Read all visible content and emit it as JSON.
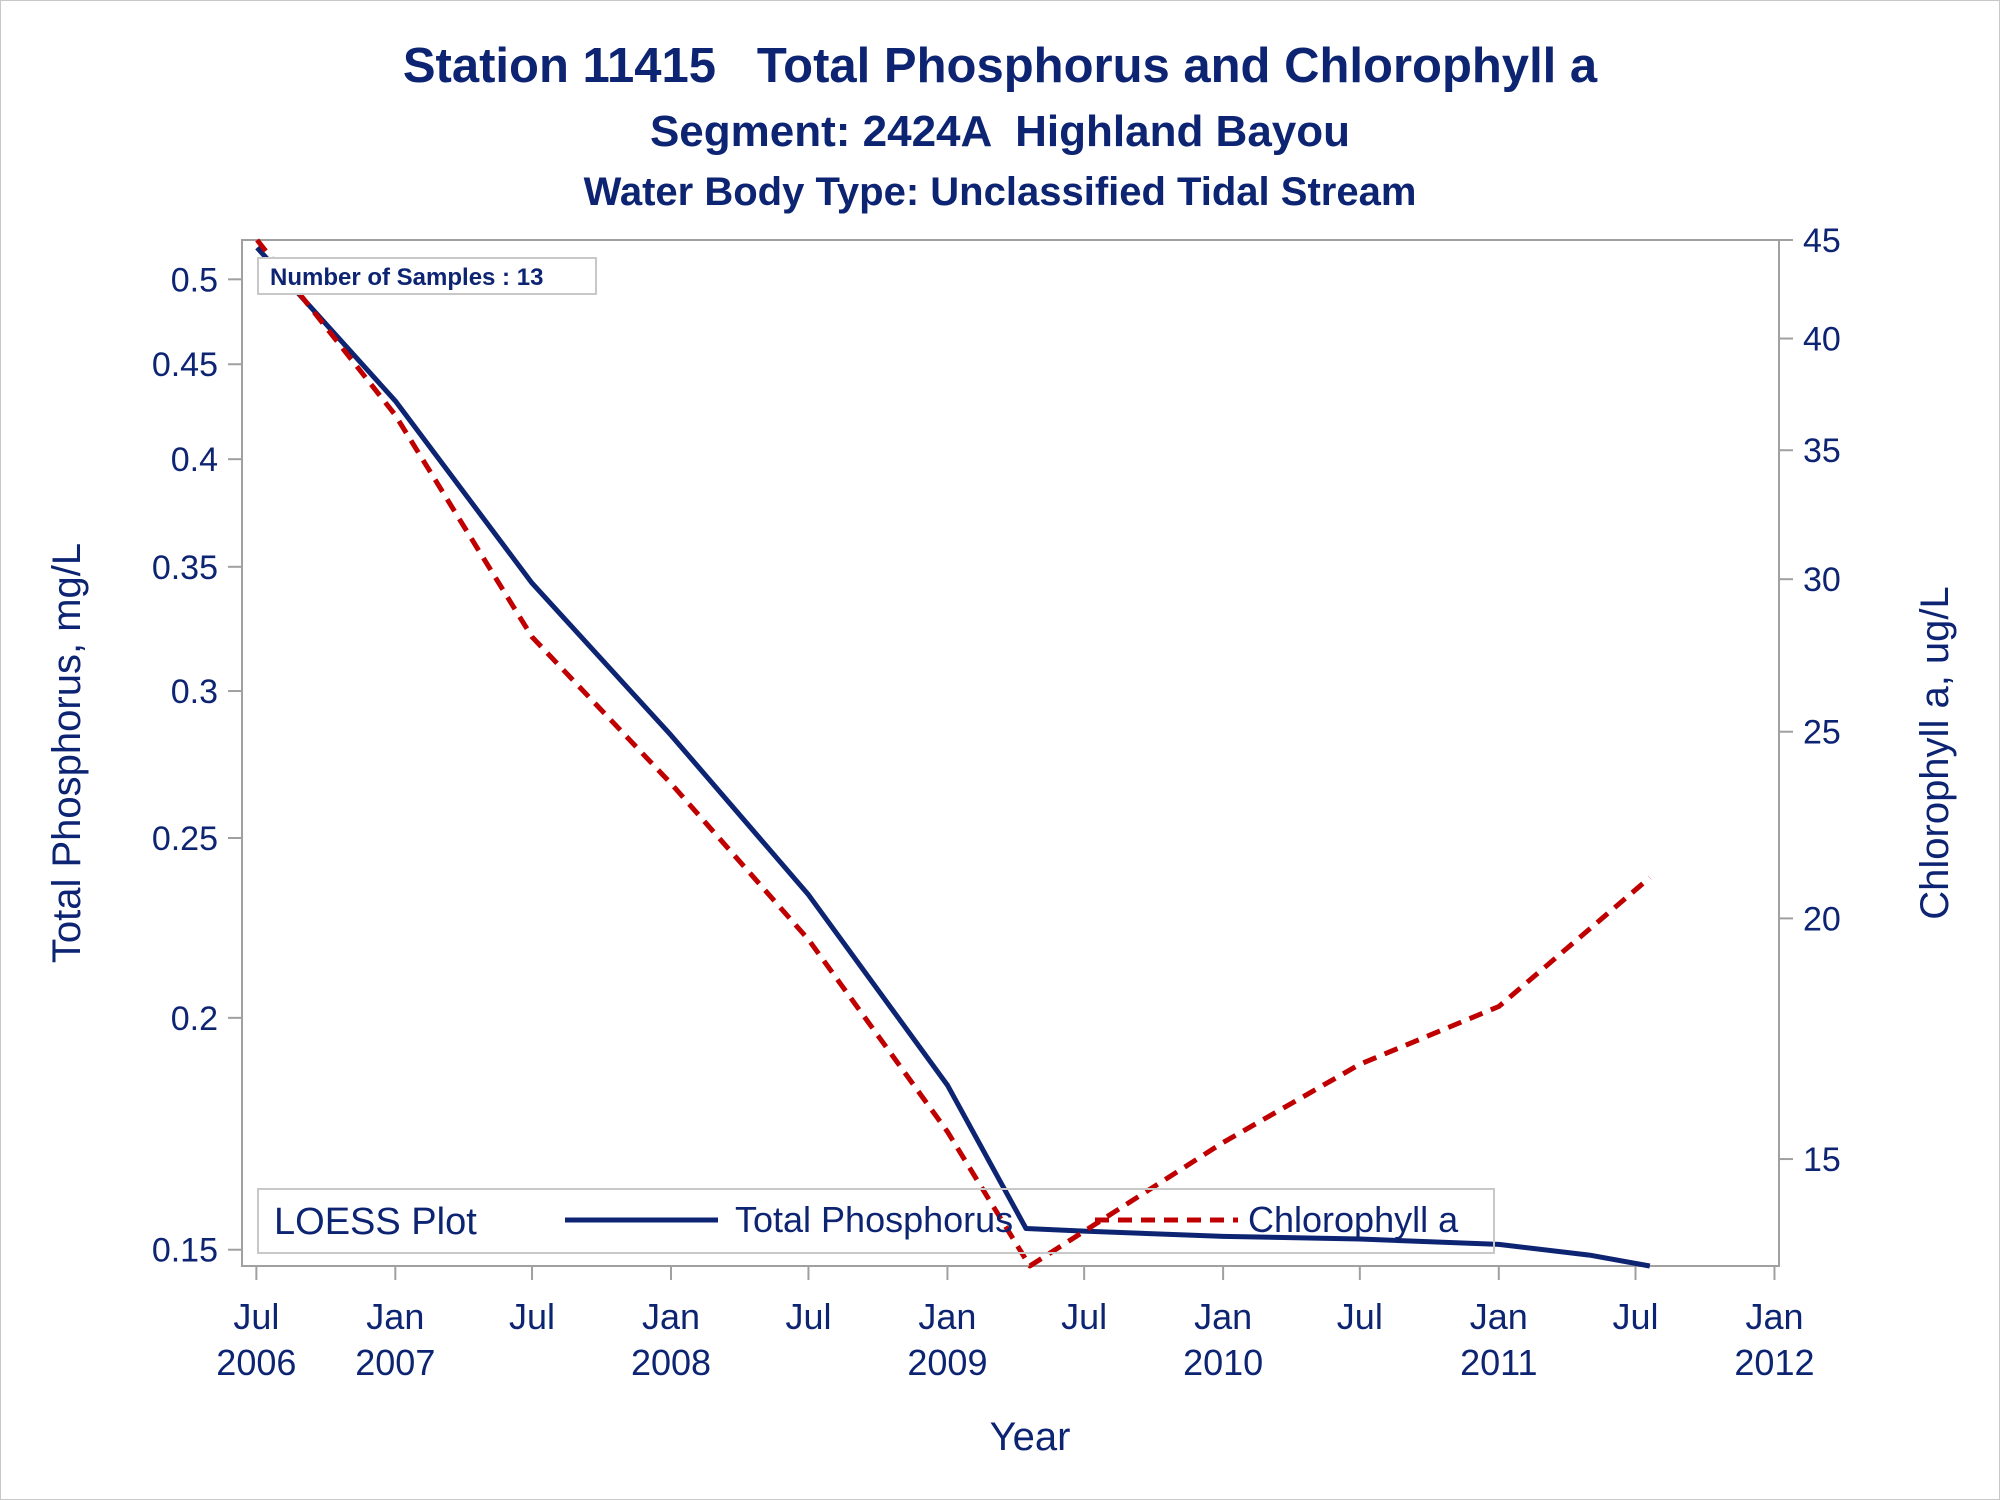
{
  "chart_data": {
    "type": "line",
    "title": "Station 11415   Total Phosphorus and Chlorophyll a",
    "subtitle": "Segment: 2424A  Highland Bayou",
    "subtitle2": "Water Body Type: Unclassified Tidal Stream",
    "xlabel": "Year",
    "ylabel": "Total Phosphorus, mg/L",
    "y2label": "Chlorophyll a, ug/L",
    "annotation": "Number of Samples : 13",
    "legend": {
      "title": "LOESS Plot",
      "placement": "bottom-left inside"
    },
    "x_ticks": [
      {
        "date": "2006-07-01",
        "label": [
          "Jul",
          "2006"
        ]
      },
      {
        "date": "2007-01-01",
        "label": [
          "Jan",
          "2007"
        ]
      },
      {
        "date": "2007-07-01",
        "label": [
          "Jul",
          ""
        ]
      },
      {
        "date": "2008-01-01",
        "label": [
          "Jan",
          "2008"
        ]
      },
      {
        "date": "2008-07-01",
        "label": [
          "Jul",
          ""
        ]
      },
      {
        "date": "2009-01-01",
        "label": [
          "Jan",
          "2009"
        ]
      },
      {
        "date": "2009-07-01",
        "label": [
          "Jul",
          ""
        ]
      },
      {
        "date": "2010-01-01",
        "label": [
          "Jan",
          "2010"
        ]
      },
      {
        "date": "2010-07-01",
        "label": [
          "Jul",
          ""
        ]
      },
      {
        "date": "2011-01-01",
        "label": [
          "Jan",
          "2011"
        ]
      },
      {
        "date": "2011-07-01",
        "label": [
          "Jul",
          ""
        ]
      },
      {
        "date": "2012-01-01",
        "label": [
          "Jan",
          "2012"
        ]
      }
    ],
    "y_ticks": [
      0.15,
      0.2,
      0.25,
      0.3,
      0.35,
      0.4,
      0.45,
      0.5
    ],
    "y_tick_labels": [
      "0.15",
      "0.2",
      "0.25",
      "0.3",
      "0.35",
      "0.4",
      "0.45",
      "0.5"
    ],
    "ylim": [
      0.147,
      0.525
    ],
    "y_scale": "log",
    "y2_ticks": [
      15,
      20,
      25,
      30,
      35,
      40,
      45
    ],
    "y2_tick_labels": [
      "15",
      "20",
      "25",
      "30",
      "35",
      "40",
      "45"
    ],
    "y2lim": [
      13.2,
      45
    ],
    "y2_scale": "log",
    "xlim": [
      "2006-06-12",
      "2012-01-07"
    ],
    "series": [
      {
        "name": "Total Phosphorus",
        "axis": "left",
        "color": "#0d2473",
        "style": "solid",
        "points": [
          [
            "2006-07-02",
            0.52
          ],
          [
            "2007-01-01",
            0.43
          ],
          [
            "2007-07-01",
            0.343
          ],
          [
            "2008-01-01",
            0.284
          ],
          [
            "2008-07-01",
            0.233
          ],
          [
            "2009-01-01",
            0.184
          ],
          [
            "2009-04-15",
            0.154
          ],
          [
            "2009-07-01",
            0.1535
          ],
          [
            "2010-01-01",
            0.1525
          ],
          [
            "2010-07-01",
            0.152
          ],
          [
            "2011-01-01",
            0.151
          ],
          [
            "2011-05-01",
            0.149
          ],
          [
            "2011-07-20",
            0.147
          ]
        ]
      },
      {
        "name": "Chlorophyll a",
        "axis": "right",
        "color": "#c00000",
        "style": "dashed",
        "points": [
          [
            "2006-07-02",
            45
          ],
          [
            "2007-01-01",
            36.5
          ],
          [
            "2007-07-01",
            28
          ],
          [
            "2008-01-01",
            23.5
          ],
          [
            "2008-07-01",
            19.5
          ],
          [
            "2009-01-01",
            15.5
          ],
          [
            "2009-04-20",
            13.2
          ],
          [
            "2010-01-01",
            15.3
          ],
          [
            "2010-07-01",
            16.8
          ],
          [
            "2011-01-01",
            18
          ],
          [
            "2011-07-20",
            21
          ]
        ]
      }
    ]
  }
}
